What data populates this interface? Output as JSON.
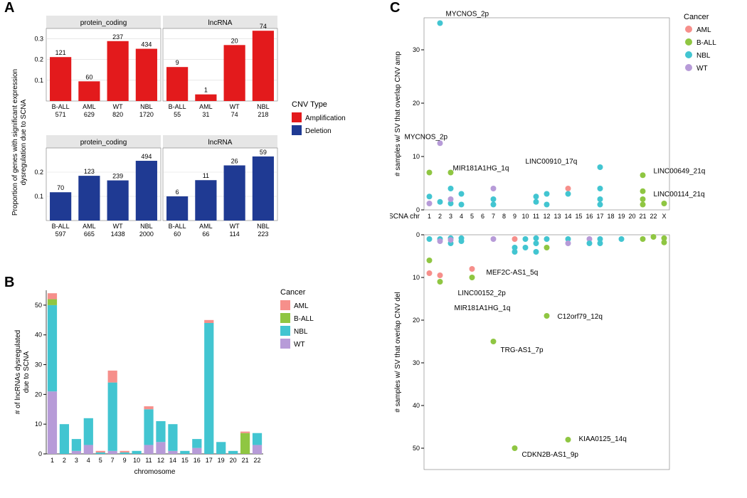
{
  "palette": {
    "amplification": "#e31a1c",
    "deletion": "#1f3a93",
    "cancer": {
      "AML": "#f68f8b",
      "B-ALL": "#8fc642",
      "NBL": "#42c5d1",
      "WT": "#b79bd8"
    },
    "facet_bg": "#e6e6e6",
    "panel_border": "#7a7a7a",
    "grid": "#d9d9d9"
  },
  "panelA": {
    "y_axis_label": "Proportion of genes with significant expression\ndysregulation due to SCNA",
    "legend_title": "CNV Type",
    "legend_items": [
      "Amplification",
      "Deletion"
    ],
    "facets_cols": [
      "protein_coding",
      "lncRNA"
    ],
    "rows": [
      {
        "color_key": "amplification",
        "ylim": [
          0,
          0.35
        ],
        "yticks": [
          0.1,
          0.2,
          0.3
        ],
        "facets": [
          {
            "bars": [
              {
                "cat": "B-ALL",
                "n": 571,
                "val": 0.212,
                "top": "121"
              },
              {
                "cat": "AML",
                "n": 629,
                "val": 0.095,
                "top": "60"
              },
              {
                "cat": "WT",
                "n": 820,
                "val": 0.289,
                "top": "237"
              },
              {
                "cat": "NBL",
                "n": 1720,
                "val": 0.252,
                "top": "434"
              }
            ]
          },
          {
            "bars": [
              {
                "cat": "B-ALL",
                "n": 55,
                "val": 0.164,
                "top": "9"
              },
              {
                "cat": "AML",
                "n": 31,
                "val": 0.032,
                "top": "1"
              },
              {
                "cat": "WT",
                "n": 74,
                "val": 0.27,
                "top": "20"
              },
              {
                "cat": "NBL",
                "n": 218,
                "val": 0.339,
                "top": "74"
              }
            ]
          }
        ]
      },
      {
        "color_key": "deletion",
        "ylim": [
          0,
          0.3
        ],
        "yticks": [
          0.1,
          0.2
        ],
        "facets": [
          {
            "bars": [
              {
                "cat": "B-ALL",
                "n": 597,
                "val": 0.117,
                "top": "70"
              },
              {
                "cat": "AML",
                "n": 665,
                "val": 0.185,
                "top": "123"
              },
              {
                "cat": "WT",
                "n": 1438,
                "val": 0.166,
                "top": "239"
              },
              {
                "cat": "NBL",
                "n": 2000,
                "val": 0.247,
                "top": "494"
              }
            ]
          },
          {
            "bars": [
              {
                "cat": "B-ALL",
                "n": 60,
                "val": 0.1,
                "top": "6"
              },
              {
                "cat": "AML",
                "n": 66,
                "val": 0.167,
                "top": "11"
              },
              {
                "cat": "WT",
                "n": 114,
                "val": 0.228,
                "top": "26"
              },
              {
                "cat": "NBL",
                "n": 223,
                "val": 0.265,
                "top": "59"
              }
            ]
          }
        ]
      }
    ]
  },
  "panelB": {
    "y_axis_label": "# of lncRNAs dysregulated\ndue to SCNA",
    "x_axis_label": "chromosome",
    "ylim": [
      0,
      55
    ],
    "yticks": [
      0,
      10,
      20,
      30,
      40,
      50
    ],
    "legend_title": "Cancer",
    "legend_order": [
      "AML",
      "B-ALL",
      "NBL",
      "WT"
    ],
    "categories": [
      "1",
      "2",
      "3",
      "4",
      "5",
      "7",
      "9",
      "10",
      "11",
      "12",
      "14",
      "15",
      "16",
      "17",
      "19",
      "20",
      "21",
      "22"
    ],
    "stacks": {
      "1": {
        "AML": 2,
        "B-ALL": 2,
        "NBL": 29,
        "WT": 21
      },
      "2": {
        "NBL": 10
      },
      "3": {
        "NBL": 4,
        "WT": 1
      },
      "4": {
        "NBL": 9,
        "WT": 3
      },
      "5": {
        "AML": 0.5,
        "NBL": 0.5
      },
      "7": {
        "AML": 4,
        "NBL": 23,
        "WT": 1
      },
      "9": {
        "AML": 0.5,
        "NBL": 0.5
      },
      "10": {
        "NBL": 1
      },
      "11": {
        "AML": 1,
        "NBL": 12,
        "WT": 3
      },
      "12": {
        "NBL": 7,
        "WT": 4
      },
      "14": {
        "NBL": 9,
        "WT": 1
      },
      "15": {
        "NBL": 1
      },
      "16": {
        "NBL": 3,
        "WT": 2
      },
      "17": {
        "AML": 1,
        "NBL": 44
      },
      "19": {
        "NBL": 4
      },
      "20": {
        "NBL": 1
      },
      "21": {
        "AML": 0.5,
        "B-ALL": 7
      },
      "22": {
        "NBL": 4,
        "WT": 3
      }
    }
  },
  "panelC": {
    "legend_title": "Cancer",
    "legend_order": [
      "AML",
      "B-ALL",
      "NBL",
      "WT"
    ],
    "x_axis_label": "SCNA chr",
    "x_categories": [
      "1",
      "2",
      "3",
      "4",
      "5",
      "6",
      "7",
      "8",
      "9",
      "10",
      "11",
      "12",
      "13",
      "14",
      "15",
      "16",
      "17",
      "18",
      "19",
      "20",
      "21",
      "22",
      "X"
    ],
    "amp": {
      "y_axis_label": "# samples w/ SV that overlap CNV amp",
      "y_axis_label_color": "#e31a1c",
      "ylim": [
        0,
        36
      ],
      "yticks": [
        0,
        10,
        20,
        30
      ],
      "points": [
        {
          "x": "1",
          "y": 2.5,
          "c": "NBL"
        },
        {
          "x": "1",
          "y": 1.2,
          "c": "WT"
        },
        {
          "x": "1",
          "y": 7,
          "c": "B-ALL"
        },
        {
          "x": "2",
          "y": 35,
          "c": "NBL",
          "label": "MYCNOS_2p",
          "lx": 0,
          "ly": -10
        },
        {
          "x": "2",
          "y": 12.5,
          "c": "WT",
          "label": "MYCNOS_2p",
          "lx": -50,
          "ly": -6
        },
        {
          "x": "2",
          "y": 1.5,
          "c": "NBL"
        },
        {
          "x": "3",
          "y": 4,
          "c": "NBL"
        },
        {
          "x": "3",
          "y": 1.2,
          "c": "NBL"
        },
        {
          "x": "3",
          "y": 2,
          "c": "WT"
        },
        {
          "x": "3",
          "y": 7,
          "c": "B-ALL",
          "label": "MIR181A1HG_1q",
          "lx": 3,
          "ly": -3
        },
        {
          "x": "4",
          "y": 3,
          "c": "NBL"
        },
        {
          "x": "4",
          "y": 1,
          "c": "NBL"
        },
        {
          "x": "7",
          "y": 4,
          "c": "WT"
        },
        {
          "x": "7",
          "y": 1,
          "c": "NBL"
        },
        {
          "x": "7",
          "y": 2,
          "c": "NBL"
        },
        {
          "x": "11",
          "y": 1.5,
          "c": "NBL"
        },
        {
          "x": "11",
          "y": 2.5,
          "c": "NBL"
        },
        {
          "x": "12",
          "y": 1,
          "c": "NBL"
        },
        {
          "x": "12",
          "y": 3,
          "c": "NBL"
        },
        {
          "x": "14",
          "y": 4,
          "c": "AML"
        },
        {
          "x": "14",
          "y": 3,
          "c": "NBL"
        },
        {
          "x": "17",
          "y": 8,
          "c": "NBL",
          "label": "LINC00910_17q",
          "lx": -105,
          "ly": -5
        },
        {
          "x": "17",
          "y": 4,
          "c": "NBL"
        },
        {
          "x": "17",
          "y": 1,
          "c": "NBL"
        },
        {
          "x": "17",
          "y": 2,
          "c": "NBL"
        },
        {
          "x": "21",
          "y": 6.5,
          "c": "B-ALL",
          "label": "LINC00649_21q",
          "lx": 15,
          "ly": -3
        },
        {
          "x": "21",
          "y": 3.5,
          "c": "B-ALL",
          "label": "LINC00114_21q",
          "lx": 15,
          "ly": 7
        },
        {
          "x": "21",
          "y": 1,
          "c": "B-ALL"
        },
        {
          "x": "21",
          "y": 2,
          "c": "B-ALL"
        },
        {
          "x": "X",
          "y": 1.2,
          "c": "B-ALL"
        }
      ]
    },
    "del": {
      "y_axis_label": "# samples w/ SV that overlap CNV del",
      "y_axis_label_color": "#1f3a93",
      "ylim": [
        0,
        55
      ],
      "yticks": [
        0,
        10,
        20,
        30,
        40,
        50
      ],
      "points": [
        {
          "x": "1",
          "y": 1,
          "c": "NBL"
        },
        {
          "x": "1",
          "y": 6,
          "c": "B-ALL"
        },
        {
          "x": "1",
          "y": 9,
          "c": "AML"
        },
        {
          "x": "2",
          "y": 1,
          "c": "NBL"
        },
        {
          "x": "2",
          "y": 1.5,
          "c": "WT"
        },
        {
          "x": "2",
          "y": 9.5,
          "c": "AML",
          "label": "LINC00152_2p",
          "lx": 25,
          "ly": 28
        },
        {
          "x": "2",
          "y": 11,
          "c": "B-ALL",
          "label": "MIR181A1HG_1q",
          "lx": 20,
          "ly": 40
        },
        {
          "x": "3",
          "y": 0.8,
          "c": "NBL"
        },
        {
          "x": "3",
          "y": 2,
          "c": "NBL"
        },
        {
          "x": "3",
          "y": 1.2,
          "c": "WT"
        },
        {
          "x": "4",
          "y": 0.8,
          "c": "NBL"
        },
        {
          "x": "4",
          "y": 1.5,
          "c": "NBL"
        },
        {
          "x": "5",
          "y": 8,
          "c": "AML",
          "label": "MEF2C-AS1_5q",
          "lx": 20,
          "ly": 8
        },
        {
          "x": "5",
          "y": 10,
          "c": "B-ALL"
        },
        {
          "x": "7",
          "y": 1,
          "c": "WT"
        },
        {
          "x": "7",
          "y": 25,
          "c": "B-ALL",
          "label": "TRG-AS1_7p",
          "lx": 10,
          "ly": 15
        },
        {
          "x": "9",
          "y": 1,
          "c": "AML"
        },
        {
          "x": "9",
          "y": 3,
          "c": "NBL"
        },
        {
          "x": "9",
          "y": 4,
          "c": "NBL"
        },
        {
          "x": "9",
          "y": 50,
          "c": "B-ALL",
          "label": "CDKN2B-AS1_9p",
          "lx": 10,
          "ly": 12
        },
        {
          "x": "10",
          "y": 3,
          "c": "NBL"
        },
        {
          "x": "10",
          "y": 1,
          "c": "NBL"
        },
        {
          "x": "11",
          "y": 0.8,
          "c": "NBL"
        },
        {
          "x": "11",
          "y": 2,
          "c": "NBL"
        },
        {
          "x": "11",
          "y": 4,
          "c": "NBL"
        },
        {
          "x": "12",
          "y": 1,
          "c": "NBL"
        },
        {
          "x": "12",
          "y": 3,
          "c": "B-ALL"
        },
        {
          "x": "12",
          "y": 19,
          "c": "B-ALL",
          "label": "C12orf79_12q",
          "lx": 15,
          "ly": 4
        },
        {
          "x": "14",
          "y": 1,
          "c": "NBL"
        },
        {
          "x": "14",
          "y": 2,
          "c": "WT"
        },
        {
          "x": "14",
          "y": 48,
          "c": "B-ALL",
          "label": "KIAA0125_14q",
          "lx": 15,
          "ly": 2
        },
        {
          "x": "16",
          "y": 1,
          "c": "WT"
        },
        {
          "x": "16",
          "y": 2,
          "c": "NBL"
        },
        {
          "x": "17",
          "y": 1,
          "c": "NBL"
        },
        {
          "x": "17",
          "y": 2,
          "c": "NBL"
        },
        {
          "x": "19",
          "y": 1,
          "c": "NBL"
        },
        {
          "x": "21",
          "y": 1,
          "c": "B-ALL"
        },
        {
          "x": "22",
          "y": 0.5,
          "c": "B-ALL"
        },
        {
          "x": "X",
          "y": 0.8,
          "c": "B-ALL"
        },
        {
          "x": "X",
          "y": 1.8,
          "c": "B-ALL"
        }
      ]
    }
  }
}
